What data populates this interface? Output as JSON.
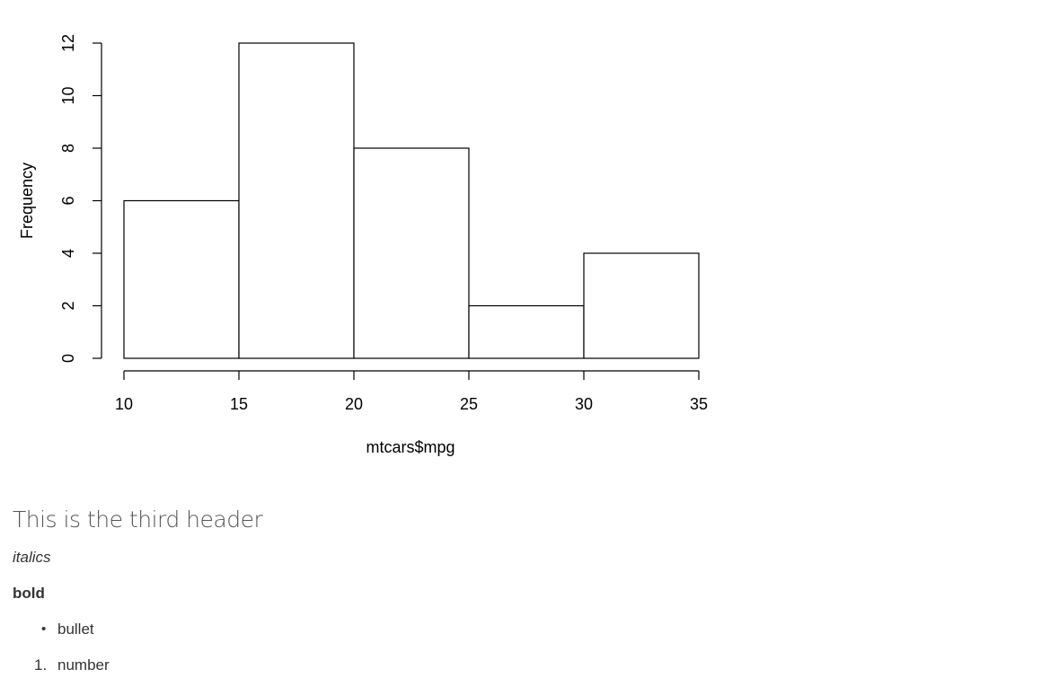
{
  "chart_data": {
    "type": "bar",
    "subtype": "histogram",
    "bins": [
      [
        10,
        15
      ],
      [
        15,
        20
      ],
      [
        20,
        25
      ],
      [
        25,
        30
      ],
      [
        30,
        35
      ]
    ],
    "values": [
      6,
      12,
      8,
      2,
      4
    ],
    "xlabel": "mtcars$mpg",
    "ylabel": "Frequency",
    "xticks": [
      "10",
      "15",
      "20",
      "25",
      "30",
      "35"
    ],
    "yticks": [
      "0",
      "2",
      "4",
      "6",
      "8",
      "10",
      "12"
    ],
    "xlim": [
      10,
      35
    ],
    "ylim": [
      0,
      12
    ],
    "grid": false,
    "bar_fill": "#ffffff",
    "bar_stroke": "#000000"
  },
  "doc": {
    "header": "This is the third header",
    "italics": "italics",
    "bold": "bold",
    "bullet_list": [
      "bullet"
    ],
    "numbered_list": [
      "number"
    ],
    "number_marker": "1.",
    "bullet_marker": "•"
  },
  "colors": {
    "text": "#333333",
    "header": "#555555",
    "axis": "#000000"
  }
}
